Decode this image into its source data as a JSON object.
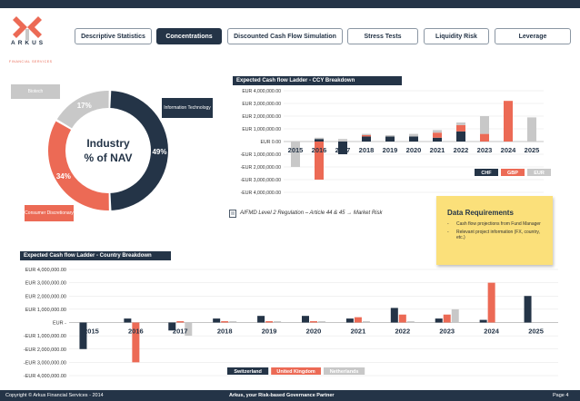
{
  "colors": {
    "navy": "#243447",
    "coral": "#ec6a55",
    "grey": "#c8c8c8",
    "yellow": "#fbe07a"
  },
  "brand": {
    "name": "ARKUS",
    "tagline": "FINANCIAL SERVICES"
  },
  "tabs": [
    {
      "label": "Descriptive Statistics"
    },
    {
      "label": "Concentrations",
      "active": true
    },
    {
      "label": "Discounted Cash Flow Simulation"
    },
    {
      "label": "Stress Tests"
    },
    {
      "label": "Liquidity Risk"
    },
    {
      "label": "Leverage"
    }
  ],
  "donut": {
    "center_line1": "Industry",
    "center_line2": "% of NAV",
    "callouts": {
      "biotech": "Biotech",
      "it": "Information Technology",
      "consumer": "Consumer Discretionary"
    }
  },
  "chart_data": [
    {
      "type": "pie",
      "title": "Industry % of NAV",
      "slices": [
        {
          "label": "Information Technology",
          "value": 49,
          "display": "49%"
        },
        {
          "label": "Consumer Discretionary",
          "value": 34,
          "display": "34%"
        },
        {
          "label": "Biotech",
          "value": 17,
          "display": "17%"
        }
      ]
    },
    {
      "type": "bar",
      "title": "Expected Cash flow Ladder - CCY Breakdown",
      "categories": [
        "2015",
        "2016",
        "2017",
        "2018",
        "2019",
        "2020",
        "2021",
        "2022",
        "2023",
        "2024",
        "2025"
      ],
      "ytick_labels": [
        "EUR 4,000,000.00",
        "EUR 3,000,000.00",
        "EUR 2,000,000.00",
        "EUR 1,000,000.00",
        "EUR 0.00",
        "-EUR 1,000,000.00",
        "-EUR 2,000,000.00",
        "-EUR 3,000,000.00",
        "-EUR 4,000,000.00"
      ],
      "ylim": [
        -4000000,
        4000000
      ],
      "stacked": true,
      "series": [
        {
          "name": "CHF",
          "color": "#243447",
          "values": [
            0,
            200000,
            -1000000,
            400000,
            400000,
            400000,
            300000,
            800000,
            0,
            0,
            0
          ]
        },
        {
          "name": "GBP",
          "color": "#ec6a55",
          "values": [
            0,
            -3000000,
            0,
            100000,
            0,
            0,
            400000,
            500000,
            600000,
            3200000,
            0
          ]
        },
        {
          "name": "EUR",
          "color": "#c8c8c8",
          "values": [
            -2000000,
            100000,
            200000,
            100000,
            100000,
            200000,
            200000,
            200000,
            1400000,
            0,
            1900000
          ]
        }
      ]
    },
    {
      "type": "bar",
      "title": "Expected Cash flow Ladder - Country Breakdown",
      "categories": [
        "2015",
        "2016",
        "2017",
        "2018",
        "2019",
        "2020",
        "2021",
        "2022",
        "2023",
        "2024",
        "2025"
      ],
      "ytick_labels": [
        "EUR 4,000,000.00",
        "EUR 3,000,000.00",
        "EUR 2,000,000.00",
        "EUR 1,000,000.00",
        "EUR -",
        "-EUR 1,000,000.00",
        "-EUR 2,000,000.00",
        "-EUR 3,000,000.00",
        "-EUR 4,000,000.00"
      ],
      "ylim": [
        -4000000,
        4000000
      ],
      "stacked": false,
      "series": [
        {
          "name": "Switzerland",
          "color": "#243447",
          "values": [
            -2000000,
            300000,
            -600000,
            300000,
            500000,
            500000,
            300000,
            1100000,
            300000,
            200000,
            2000000
          ]
        },
        {
          "name": "United Kingdom",
          "color": "#ec6a55",
          "values": [
            0,
            -3000000,
            100000,
            100000,
            100000,
            100000,
            400000,
            600000,
            600000,
            3000000,
            0
          ]
        },
        {
          "name": "Netherlands",
          "color": "#c8c8c8",
          "values": [
            0,
            0,
            -1000000,
            100000,
            100000,
            100000,
            100000,
            100000,
            1000000,
            0,
            0
          ]
        }
      ]
    }
  ],
  "regulation_note": "AIFMD Level 2 Regulation – Article 44 & 45 → Market Risk",
  "requirements": {
    "title": "Data Requirements",
    "items": [
      "Cash flow projections from Fund Manager",
      "Relevant project information (FX, country, etc.)"
    ]
  },
  "footer": {
    "copyright": "Copyright © Arkus Financial Services - 2014",
    "slogan": "Arkus, your Risk-based Governance Partner",
    "page": "Page 4"
  }
}
